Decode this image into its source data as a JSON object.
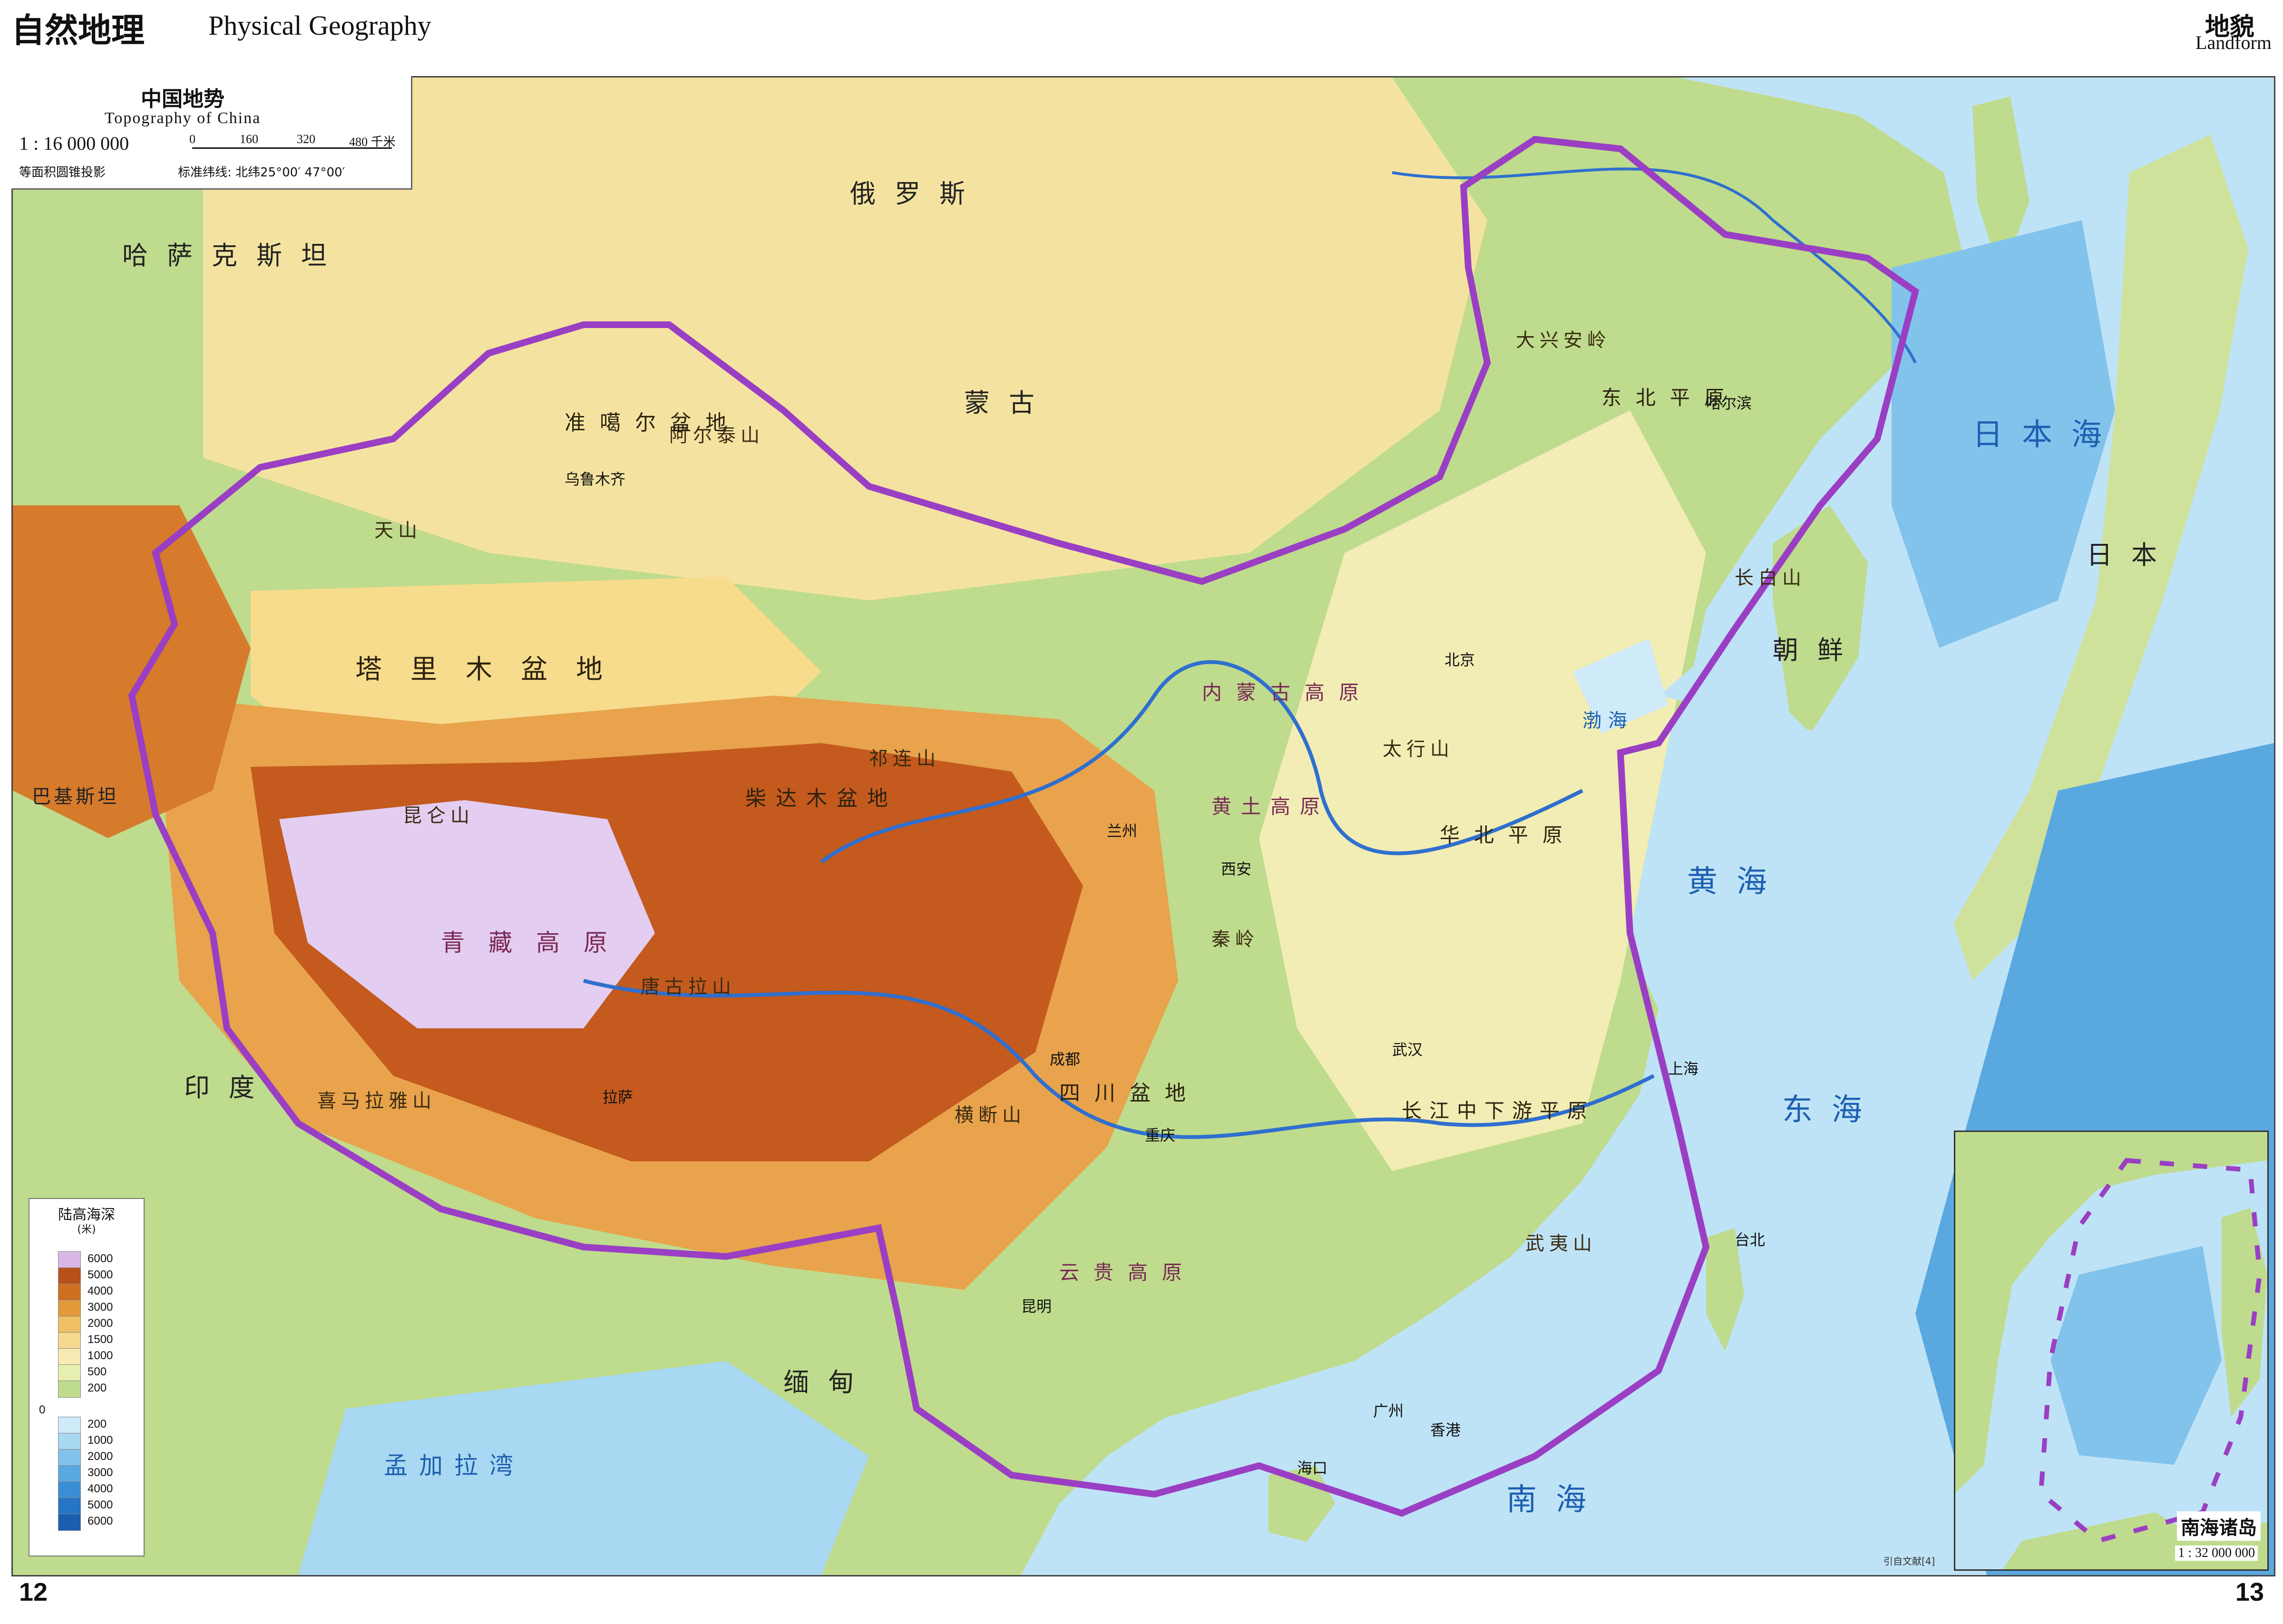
{
  "header": {
    "section_cn": "自然地理",
    "section_en": "Physical Geography",
    "topic_cn": "地貌",
    "topic_en": "Landform"
  },
  "title_box": {
    "title_cn": "中国地势",
    "title_en": "Topography of China",
    "scale": "1 : 16 000 000",
    "scale_bar_ticks": [
      "0",
      "160",
      "320",
      "480 千米"
    ],
    "projection": "等面积圆锥投影",
    "parallels": "标准纬线: 北纬25°00′ 47°00′"
  },
  "legend": {
    "title": "陆高海深",
    "unit": "(米)",
    "land_levels": [
      "6000",
      "5000",
      "4000",
      "3000",
      "2000",
      "1500",
      "1000",
      "500",
      "200"
    ],
    "sea_zero": "0",
    "sea_levels": [
      "200",
      "1000",
      "2000",
      "3000",
      "4000",
      "5000",
      "6000"
    ],
    "land_colors": [
      "#d9b8e8",
      "#b8501b",
      "#cd7020",
      "#e29a3a",
      "#efc066",
      "#f6d88e",
      "#f7eab2",
      "#e6eeb0",
      "#bfdb8d"
    ],
    "sea_colors": [
      "#cfeaf8",
      "#a8d8f2",
      "#82c3ec",
      "#5aa8e0",
      "#3a8ed6",
      "#2574c6",
      "#1a5eb0"
    ]
  },
  "map_colors": {
    "sea": "#bfe3f6",
    "deep_sea": "#5aa8e0",
    "lowland": "#bfdb8d",
    "plain": "#f1edb4",
    "plateau": "#e8a34c",
    "high_plateau": "#c45a1e",
    "highest": "#e3cdf1",
    "border": "#9a3fc4",
    "river": "#2f6fcf"
  },
  "labels": {
    "countries": {
      "russia": "俄罗斯",
      "kazakhstan": "哈萨克斯坦",
      "mongolia": "蒙古",
      "india": "印度",
      "burma": "缅甸",
      "korea": "朝鲜",
      "japan": "日本",
      "pakistan": "巴基斯坦"
    },
    "ranges": {
      "tianshan": "天山",
      "kunlun": "昆仑山",
      "himalaya": "喜马拉雅山",
      "qilian": "祁连山",
      "altai": "阿尔泰山",
      "daxinganling": "大兴安岭",
      "changbai": "长白山",
      "qinling": "秦岭",
      "taihang": "太行山",
      "hengduan": "横断山",
      "tanggula": "唐古拉山",
      "wuyi": "武夷山"
    },
    "basins": {
      "tarim": "塔里木盆地",
      "junggar": "准噶尔盆地",
      "sichuan": "四川盆地",
      "qaidam": "柴达木盆地"
    },
    "plateaus": {
      "qingzang": "青藏高原",
      "neimenggu": "内蒙古高原",
      "huangtu": "黄土高原",
      "yungui": "云贵高原"
    },
    "plains": {
      "dongbei": "东北平原",
      "huabei": "华北平原",
      "changjiang": "长江中下游平原"
    },
    "seas": {
      "bohai": "渤海",
      "huanghai": "黄海",
      "donghai": "东海",
      "nanhai": "南海",
      "riben_hai": "日本海",
      "bengal": "孟加拉湾"
    },
    "cities": {
      "beijing": "北京",
      "shanghai": "上海",
      "guangzhou": "广州",
      "chongqing": "重庆",
      "chengdu": "成都",
      "lhasa": "拉萨",
      "urumqi": "乌鲁木齐",
      "harbin": "哈尔滨",
      "xian": "西安",
      "wuhan": "武汉",
      "lanzhou": "兰州",
      "kunming": "昆明",
      "taipei": "台北",
      "hongkong": "香港",
      "haikou": "海口"
    }
  },
  "inset": {
    "title": "南海诸岛",
    "scale": "1 : 32 000 000"
  },
  "footer": {
    "page_left": "12",
    "page_right": "13",
    "credit": "引自文献[4]"
  }
}
